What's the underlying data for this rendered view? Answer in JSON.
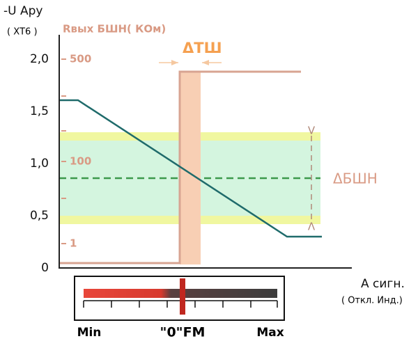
{
  "header": {
    "y_axis_label": "-U Ару",
    "y_axis_sublabel": "( ХТ6 )",
    "secondary_axis_title": "Rвых БШН( КОм)"
  },
  "y_ticks": [
    "2,0",
    "1,5",
    "1,0",
    "0,5",
    "0"
  ],
  "secondary_ticks": [
    "500",
    "100",
    "1"
  ],
  "annotations": {
    "dead_zone": "ΔТШ",
    "band": "ΔБШН",
    "band_top": "V",
    "band_bottom": "Λ"
  },
  "x_axis": {
    "label": "А сигн.",
    "sublabel": "( Откл. Инд.)"
  },
  "indicator": {
    "min": "Min",
    "center": "\"0\"FM",
    "max": "Max"
  }
}
